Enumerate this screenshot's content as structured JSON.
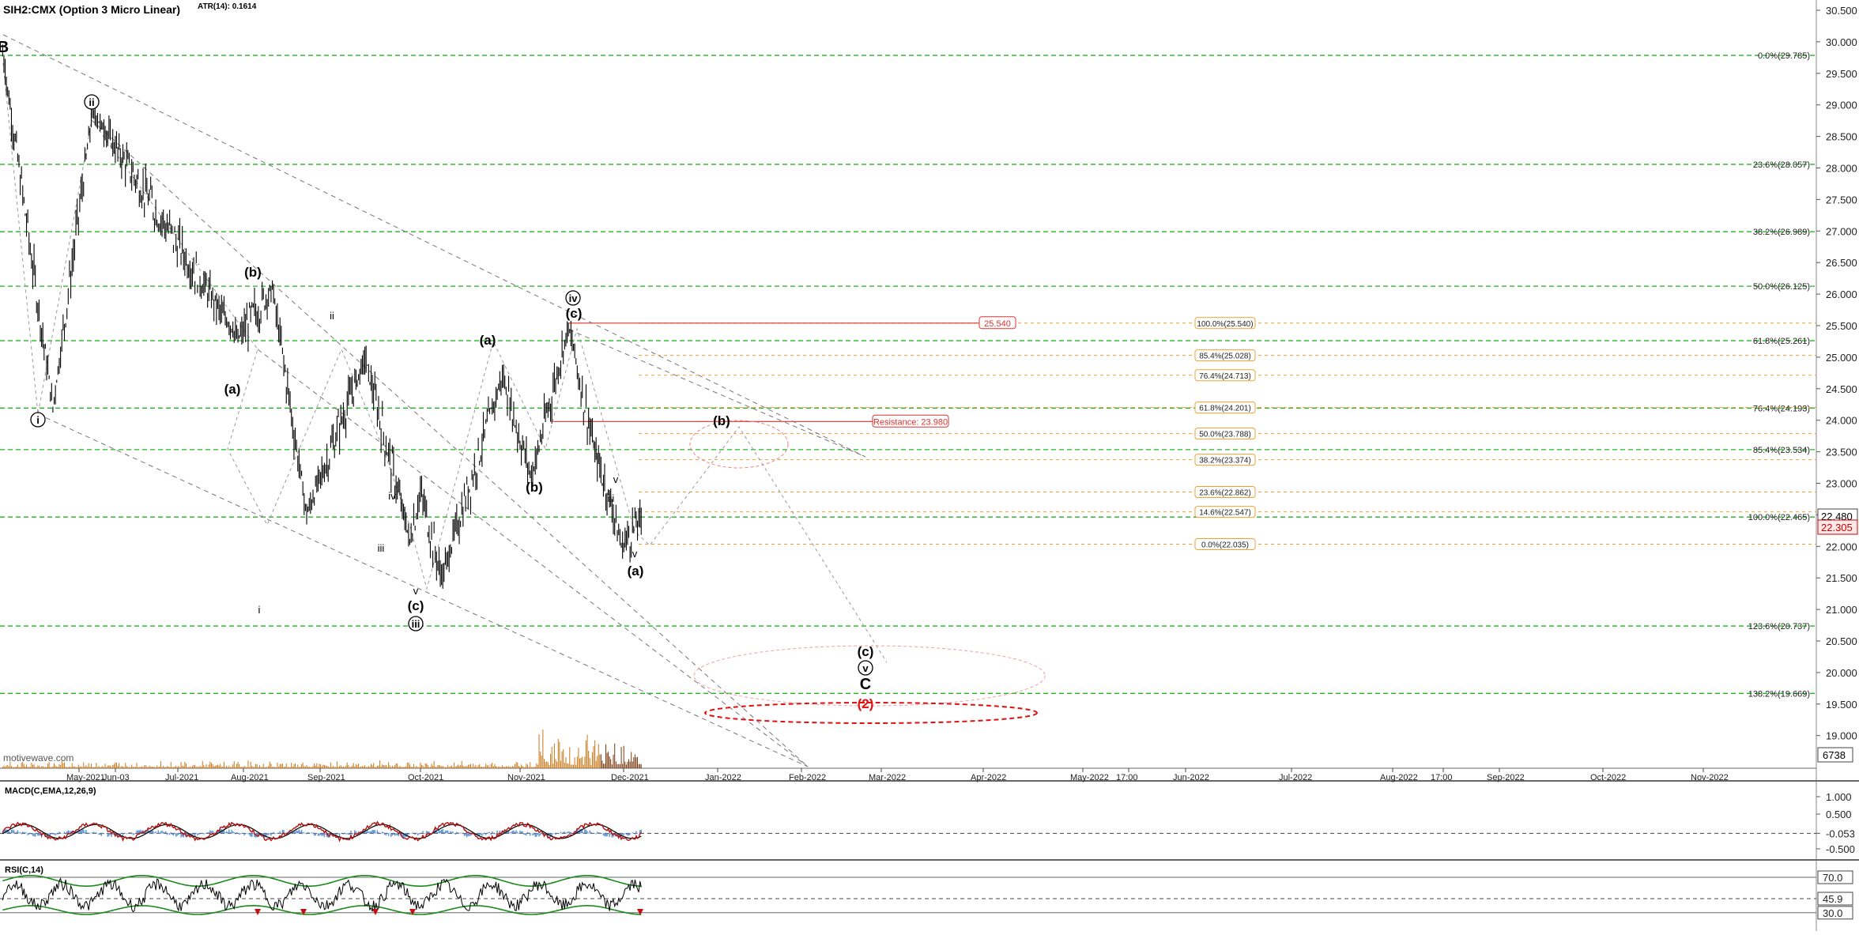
{
  "header": {
    "title": "SIH2:CMX (Option 3 Micro Linear)",
    "atr": "ATR(14): 0.1614"
  },
  "watermark": "motivewave.com",
  "colors": {
    "fib_green": "#22b522",
    "fib_orange": "#f0a030",
    "resistance": "#e03030",
    "target_red": "#e01010",
    "price_bar": "#000000",
    "macd_line": "#b01010",
    "macd_signal": "#000000",
    "macd_hist": "#5a8fd0",
    "rsi_band": "#1a8a1a",
    "volume": "#c87818"
  },
  "price_axis": {
    "range": [
      18.5,
      30.5
    ],
    "labels": [
      "30.500",
      "30.000",
      "29.500",
      "29.000",
      "28.500",
      "28.000",
      "27.500",
      "27.000",
      "26.500",
      "26.000",
      "25.500",
      "25.000",
      "24.500",
      "24.000",
      "23.500",
      "23.000",
      "22.500",
      "22.000",
      "21.500",
      "21.000",
      "20.500",
      "20.000",
      "19.500",
      "19.000"
    ],
    "last_price_label": "22.480",
    "ref_price_label": "22.305",
    "volume_label": "6738"
  },
  "time_axis": {
    "labels": [
      "May-2021",
      "Jun-03",
      "Jul-2021",
      "Aug-2021",
      "Sep-2021",
      "Oct-2021",
      "Nov-2021",
      "Dec-2021",
      "Jan-2022",
      "Feb-2022",
      "Mar-2022",
      "Apr-2022",
      "May-2022",
      "17:00",
      "Jun-2022",
      "Jul-2022",
      "Aug-2022",
      "17:00",
      "Sep-2022",
      "Oct-2022",
      "Nov-2022"
    ]
  },
  "green_fibs": [
    {
      "value": 29.785,
      "label": "0.0%(29.785)"
    },
    {
      "value": 28.057,
      "label": "23.6%(28.057)"
    },
    {
      "value": 26.989,
      "label": "38.2%(26.989)"
    },
    {
      "value": 26.125,
      "label": "50.0%(26.125)"
    },
    {
      "value": 25.261,
      "label": "61.8%(25.261)"
    },
    {
      "value": 24.193,
      "label": "76.4%(24.193)"
    },
    {
      "value": 23.534,
      "label": "85.4%(23.534)"
    },
    {
      "value": 22.465,
      "label": "100.0%(22.465)"
    },
    {
      "value": 20.737,
      "label": "123.6%(20.737)"
    },
    {
      "value": 19.669,
      "label": "138.2%(19.669)"
    }
  ],
  "orange_fibs": [
    {
      "value": 25.54,
      "label": "100.0%(25.540)"
    },
    {
      "value": 25.028,
      "label": "85.4%(25.028)"
    },
    {
      "value": 24.713,
      "label": "76.4%(24.713)"
    },
    {
      "value": 24.201,
      "label": "61.8%(24.201)"
    },
    {
      "value": 23.788,
      "label": "50.0%(23.788)"
    },
    {
      "value": 23.374,
      "label": "38.2%(23.374)"
    },
    {
      "value": 22.862,
      "label": "23.6%(22.862)"
    },
    {
      "value": 22.547,
      "label": "14.6%(22.547)"
    },
    {
      "value": 22.035,
      "label": "0.0%(22.035)"
    }
  ],
  "resistance_lines": [
    {
      "value": 25.54,
      "label": "25.540"
    },
    {
      "value": 23.98,
      "label": "Resistance: 23.980"
    }
  ],
  "wave_labels": [
    {
      "text": "B",
      "style": "bold"
    },
    {
      "text": "ii",
      "style": "circled"
    },
    {
      "text": "i",
      "style": "circled"
    },
    {
      "text": "(b)",
      "style": "bold"
    },
    {
      "text": "(a)",
      "style": "bold"
    },
    {
      "text": "ii",
      "style": "plain"
    },
    {
      "text": "i",
      "style": "plain"
    },
    {
      "text": "iv",
      "style": "plain"
    },
    {
      "text": "iii",
      "style": "plain"
    },
    {
      "text": "v",
      "style": "plain"
    },
    {
      "text": "(c)",
      "style": "bold"
    },
    {
      "text": "iii",
      "style": "circled"
    },
    {
      "text": "(a)",
      "style": "bold"
    },
    {
      "text": "(b)",
      "style": "bold"
    },
    {
      "text": "iv",
      "style": "circled"
    },
    {
      "text": "(c)",
      "style": "bold"
    },
    {
      "text": "v",
      "style": "plain"
    },
    {
      "text": "iii",
      "style": "plain"
    },
    {
      "text": "v",
      "style": "plain"
    },
    {
      "text": "(a)",
      "style": "bold"
    },
    {
      "text": "(b)",
      "style": "bold"
    },
    {
      "text": "(c)",
      "style": "bold"
    },
    {
      "text": "v",
      "style": "circled"
    },
    {
      "text": "C",
      "style": "bold"
    },
    {
      "text": "(2)",
      "style": "red"
    }
  ],
  "macd": {
    "title": "MACD(C,EMA,12,26,9)",
    "labels": [
      "1.000",
      "0.500",
      "-0.053",
      "-0.500"
    ]
  },
  "rsi": {
    "title": "RSI(C,14)",
    "labels": [
      "70.0",
      "45.9",
      "30.0"
    ]
  },
  "chart_data": {
    "type": "candlestick",
    "symbol": "SIH2:CMX",
    "ylim": [
      18.5,
      30.5
    ],
    "date_range": [
      "2021-04-15",
      "2022-11-30"
    ],
    "key_points": [
      {
        "date": "2021-04-16",
        "price": 29.8,
        "wave": "B"
      },
      {
        "date": "2021-05-05",
        "price": 24.2,
        "wave": "i"
      },
      {
        "date": "2021-05-20",
        "price": 28.9,
        "wave": "ii"
      },
      {
        "date": "2021-07-14",
        "price": 25.3,
        "wave": "(a)"
      },
      {
        "date": "2021-07-27",
        "price": 26.1,
        "wave": "(b)"
      },
      {
        "date": "2021-08-09",
        "price": 22.5,
        "wave": "i"
      },
      {
        "date": "2021-08-31",
        "price": 25.0,
        "wave": "ii"
      },
      {
        "date": "2021-09-17",
        "price": 22.1,
        "wave": "iii"
      },
      {
        "date": "2021-09-21",
        "price": 22.9,
        "wave": "iv"
      },
      {
        "date": "2021-09-29",
        "price": 21.5,
        "wave": "(c) / iii"
      },
      {
        "date": "2021-10-22",
        "price": 24.7,
        "wave": "(a)"
      },
      {
        "date": "2021-11-02",
        "price": 23.1,
        "wave": "(b)"
      },
      {
        "date": "2021-11-16",
        "price": 25.5,
        "wave": "(c) / iv"
      },
      {
        "date": "2021-11-26",
        "price": 23.5,
        "wave": "v"
      },
      {
        "date": "2021-12-02",
        "price": 22.7,
        "wave": "iii"
      },
      {
        "date": "2021-12-06",
        "price": 22.0,
        "wave": "v / (a)"
      },
      {
        "date": "2021-12-14",
        "price": 22.48,
        "wave": "last"
      }
    ],
    "projections": [
      {
        "date": "2022-01-10",
        "price": 24.0,
        "wave": "(b)"
      },
      {
        "date": "2022-03-01",
        "price": 20.3,
        "wave": "(c)"
      },
      {
        "date": "2022-03-01",
        "price": 19.7,
        "wave": "C / (2)"
      }
    ]
  }
}
